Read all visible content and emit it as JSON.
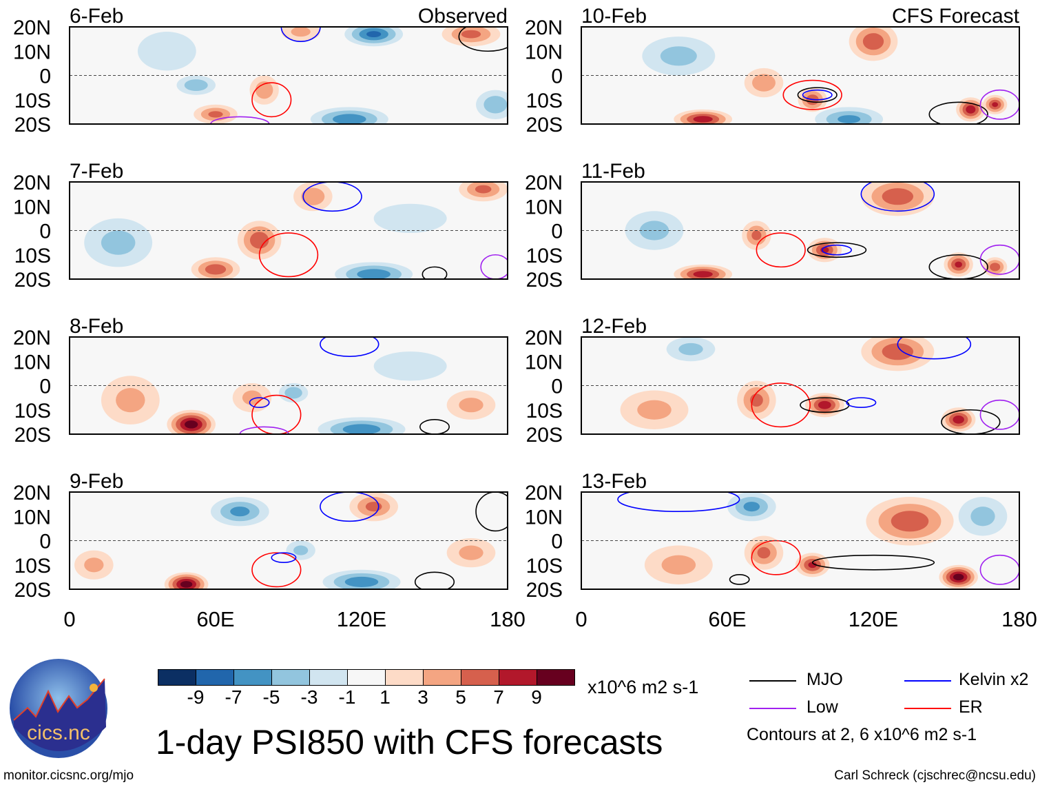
{
  "chart_data": {
    "type": "heatmap",
    "title": "1-day PSI850 with CFS forecasts",
    "units": "x10^6 m2 s-1",
    "lat_labels": [
      "20N",
      "10N",
      "0",
      "10S",
      "20S"
    ],
    "lon_labels": [
      "0",
      "60E",
      "120E",
      "180"
    ],
    "lon_range": [
      0,
      180
    ],
    "lat_range": [
      -20,
      20
    ],
    "column_titles": [
      "Observed",
      "CFS Forecast"
    ],
    "levels": [
      -9,
      -7,
      -5,
      -3,
      -1,
      1,
      3,
      5,
      7,
      9
    ],
    "level_labels": [
      "-9",
      "-7",
      "-5",
      "-3",
      "-1",
      "1",
      "3",
      "5",
      "7",
      "9"
    ],
    "colors": [
      "#0b2f63",
      "#2166ac",
      "#4393c3",
      "#92c5de",
      "#d1e5f0",
      "#f7f7f7",
      "#fddbc7",
      "#f4a582",
      "#d6604d",
      "#b2182b",
      "#67001f"
    ],
    "panels": [
      {
        "date": "6-Feb",
        "col": 0,
        "row": 0,
        "blobs": [
          [
            52,
            -4,
            -4,
            8,
            4
          ],
          [
            80,
            -6,
            4,
            6,
            6
          ],
          [
            125,
            17,
            -7,
            12,
            5
          ],
          [
            165,
            17,
            5,
            12,
            5
          ],
          [
            115,
            -18,
            -6,
            16,
            5
          ],
          [
            60,
            -16,
            5,
            9,
            4
          ],
          [
            40,
            10,
            -2,
            12,
            8
          ],
          [
            95,
            18,
            3,
            8,
            4
          ],
          [
            175,
            -12,
            -4,
            8,
            6
          ]
        ],
        "contours": [
          [
            "ER",
            83,
            -10,
            8,
            7
          ],
          [
            "Kelvin",
            95,
            20,
            8,
            6
          ],
          [
            "MJO",
            172,
            16,
            12,
            6
          ],
          [
            "Low",
            70,
            -20,
            12,
            3
          ]
        ]
      },
      {
        "date": "7-Feb",
        "col": 0,
        "row": 1,
        "blobs": [
          [
            78,
            -4,
            6,
            9,
            8
          ],
          [
            60,
            -16,
            6,
            10,
            5
          ],
          [
            125,
            -18,
            -6,
            16,
            5
          ],
          [
            170,
            17,
            5,
            10,
            5
          ],
          [
            100,
            14,
            4,
            8,
            6
          ],
          [
            20,
            -5,
            -3,
            14,
            10
          ],
          [
            140,
            5,
            -2,
            15,
            6
          ]
        ],
        "contours": [
          [
            "ER",
            90,
            -10,
            12,
            9
          ],
          [
            "Kelvin",
            108,
            14,
            12,
            6
          ],
          [
            "MJO",
            150,
            -18,
            5,
            3
          ],
          [
            "Low",
            175,
            -15,
            6,
            5
          ]
        ]
      },
      {
        "date": "8-Feb",
        "col": 0,
        "row": 2,
        "blobs": [
          [
            50,
            -16,
            10,
            10,
            6
          ],
          [
            75,
            -5,
            3,
            8,
            6
          ],
          [
            120,
            -18,
            -6,
            18,
            5
          ],
          [
            92,
            -3,
            -4,
            6,
            4
          ],
          [
            140,
            8,
            -2,
            15,
            6
          ],
          [
            25,
            -6,
            3,
            12,
            10
          ],
          [
            165,
            -8,
            3,
            10,
            6
          ]
        ],
        "contours": [
          [
            "ER",
            85,
            -12,
            10,
            8
          ],
          [
            "Kelvin",
            78,
            -7,
            4,
            2
          ],
          [
            "Kelvin",
            115,
            17,
            12,
            5
          ],
          [
            "MJO",
            150,
            -17,
            6,
            3
          ],
          [
            "Low",
            80,
            -20,
            10,
            3
          ]
        ]
      },
      {
        "date": "9-Feb",
        "col": 0,
        "row": 3,
        "blobs": [
          [
            48,
            -18,
            10,
            9,
            5
          ],
          [
            120,
            -17,
            -6,
            16,
            5
          ],
          [
            125,
            14,
            5,
            10,
            6
          ],
          [
            70,
            12,
            -5,
            12,
            6
          ],
          [
            95,
            -4,
            -3,
            6,
            4
          ],
          [
            10,
            -10,
            3,
            8,
            6
          ],
          [
            165,
            -5,
            3,
            10,
            6
          ]
        ],
        "contours": [
          [
            "ER",
            85,
            -12,
            10,
            7
          ],
          [
            "Kelvin",
            88,
            -7,
            5,
            2
          ],
          [
            "Kelvin",
            115,
            14,
            12,
            6
          ],
          [
            "MJO",
            150,
            -17,
            8,
            4
          ],
          [
            "MJO",
            175,
            12,
            8,
            8
          ]
        ]
      },
      {
        "date": "10-Feb",
        "col": 1,
        "row": 0,
        "blobs": [
          [
            120,
            14,
            6,
            10,
            8
          ],
          [
            95,
            -10,
            6,
            6,
            5
          ],
          [
            75,
            -3,
            4,
            8,
            6
          ],
          [
            50,
            -18,
            8,
            12,
            4
          ],
          [
            160,
            -14,
            8,
            6,
            5
          ],
          [
            170,
            -12,
            7,
            5,
            4
          ],
          [
            110,
            -18,
            -5,
            14,
            5
          ],
          [
            40,
            8,
            -3,
            15,
            8
          ]
        ],
        "contours": [
          [
            "ER",
            95,
            -8,
            12,
            6
          ],
          [
            "Kelvin",
            97,
            -8,
            6,
            2
          ],
          [
            "MJO",
            97,
            -8,
            8,
            3
          ],
          [
            "MJO",
            155,
            -16,
            12,
            5
          ],
          [
            "Low",
            172,
            -12,
            8,
            6
          ]
        ]
      },
      {
        "date": "11-Feb",
        "col": 1,
        "row": 1,
        "blobs": [
          [
            130,
            14,
            6,
            15,
            8
          ],
          [
            100,
            -8,
            7,
            7,
            5
          ],
          [
            72,
            -2,
            5,
            6,
            6
          ],
          [
            50,
            -18,
            8,
            12,
            4
          ],
          [
            155,
            -14,
            7,
            6,
            5
          ],
          [
            170,
            -15,
            6,
            5,
            4
          ],
          [
            30,
            0,
            -3,
            12,
            8
          ]
        ],
        "contours": [
          [
            "ER",
            82,
            -8,
            10,
            7
          ],
          [
            "Kelvin",
            105,
            -8,
            6,
            2
          ],
          [
            "MJO",
            105,
            -8,
            12,
            3
          ],
          [
            "MJO",
            155,
            -15,
            12,
            5
          ],
          [
            "Kelvin",
            130,
            15,
            15,
            7
          ],
          [
            "Low",
            172,
            -12,
            8,
            6
          ]
        ]
      },
      {
        "date": "12-Feb",
        "col": 1,
        "row": 2,
        "blobs": [
          [
            130,
            14,
            6,
            15,
            8
          ],
          [
            100,
            -8,
            8,
            8,
            5
          ],
          [
            72,
            -6,
            5,
            8,
            8
          ],
          [
            155,
            -14,
            8,
            7,
            5
          ],
          [
            30,
            -10,
            3,
            14,
            8
          ],
          [
            45,
            15,
            -3,
            10,
            5
          ]
        ],
        "contours": [
          [
            "ER",
            82,
            -8,
            12,
            9
          ],
          [
            "MJO",
            100,
            -8,
            10,
            3
          ],
          [
            "Kelvin",
            115,
            -7,
            6,
            2
          ],
          [
            "MJO",
            160,
            -15,
            12,
            5
          ],
          [
            "Kelvin",
            145,
            17,
            15,
            6
          ],
          [
            "Low",
            172,
            -12,
            8,
            6
          ]
        ]
      },
      {
        "date": "13-Feb",
        "col": 1,
        "row": 3,
        "blobs": [
          [
            135,
            8,
            6,
            18,
            10
          ],
          [
            95,
            -10,
            7,
            7,
            5
          ],
          [
            75,
            -5,
            5,
            8,
            7
          ],
          [
            155,
            -15,
            10,
            8,
            5
          ],
          [
            40,
            -10,
            3,
            14,
            8
          ],
          [
            70,
            14,
            -5,
            10,
            6
          ],
          [
            165,
            10,
            -3,
            10,
            8
          ]
        ],
        "contours": [
          [
            "ER",
            80,
            -7,
            10,
            7
          ],
          [
            "MJO",
            120,
            -9,
            25,
            3
          ],
          [
            "Kelvin",
            40,
            17,
            25,
            5
          ],
          [
            "MJO",
            65,
            -16,
            4,
            2
          ],
          [
            "Low",
            172,
            -12,
            8,
            6
          ]
        ]
      }
    ]
  },
  "legend": {
    "items": [
      {
        "label": "MJO",
        "color": "#000000"
      },
      {
        "label": "Kelvin x2",
        "color": "#0000ff"
      },
      {
        "label": "Low",
        "color": "#a020f0"
      },
      {
        "label": "ER",
        "color": "#ff0000"
      }
    ],
    "note": "Contours at 2, 6 x10^6 m2 s-1"
  },
  "logo": {
    "text": "cics.nc",
    "ring": "Cooperative Institute for Climate and Satellites"
  },
  "footer": {
    "url": "monitor.cicsnc.org/mjo",
    "credit": "Carl Schreck (cjschrec@ncsu.edu)"
  }
}
